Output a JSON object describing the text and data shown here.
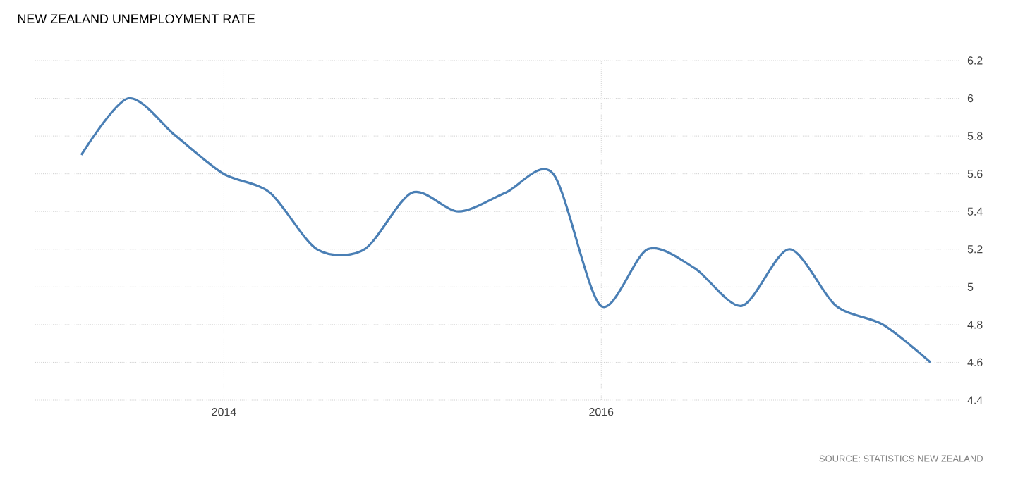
{
  "chart_data": {
    "type": "line",
    "title": "NEW ZEALAND UNEMPLOYMENT RATE",
    "x": [
      "2013-03-31",
      "2013-06-30",
      "2013-09-30",
      "2013-12-31",
      "2014-03-31",
      "2014-06-30",
      "2014-09-30",
      "2014-12-31",
      "2015-03-31",
      "2015-06-30",
      "2015-09-30",
      "2015-12-31",
      "2016-03-31",
      "2016-06-30",
      "2016-09-30",
      "2016-12-31",
      "2017-03-31",
      "2017-06-30",
      "2017-09-30"
    ],
    "series": [
      {
        "color": "#4a7fb5",
        "values": [
          5.7,
          6.0,
          5.8,
          5.6,
          5.5,
          5.2,
          5.2,
          5.5,
          5.4,
          5.5,
          5.6,
          4.9,
          5.2,
          5.1,
          4.9,
          5.2,
          4.9,
          4.8,
          4.6
        ]
      }
    ],
    "xlim": [
      "2013-01-01",
      "2017-11-25"
    ],
    "xticks": [
      {
        "value": "2014",
        "label": "2014"
      },
      {
        "value": "2016",
        "label": "2016"
      }
    ],
    "ylim": [
      4.4,
      6.2
    ],
    "yticks": [
      4.4,
      4.6,
      4.8,
      5,
      5.2,
      5.4,
      5.6,
      5.8,
      6,
      6.2
    ],
    "grid": true,
    "line_style": "solid",
    "marker": "none",
    "annotations": [
      "SOURCE: STATISTICS NEW ZEALAND"
    ]
  }
}
